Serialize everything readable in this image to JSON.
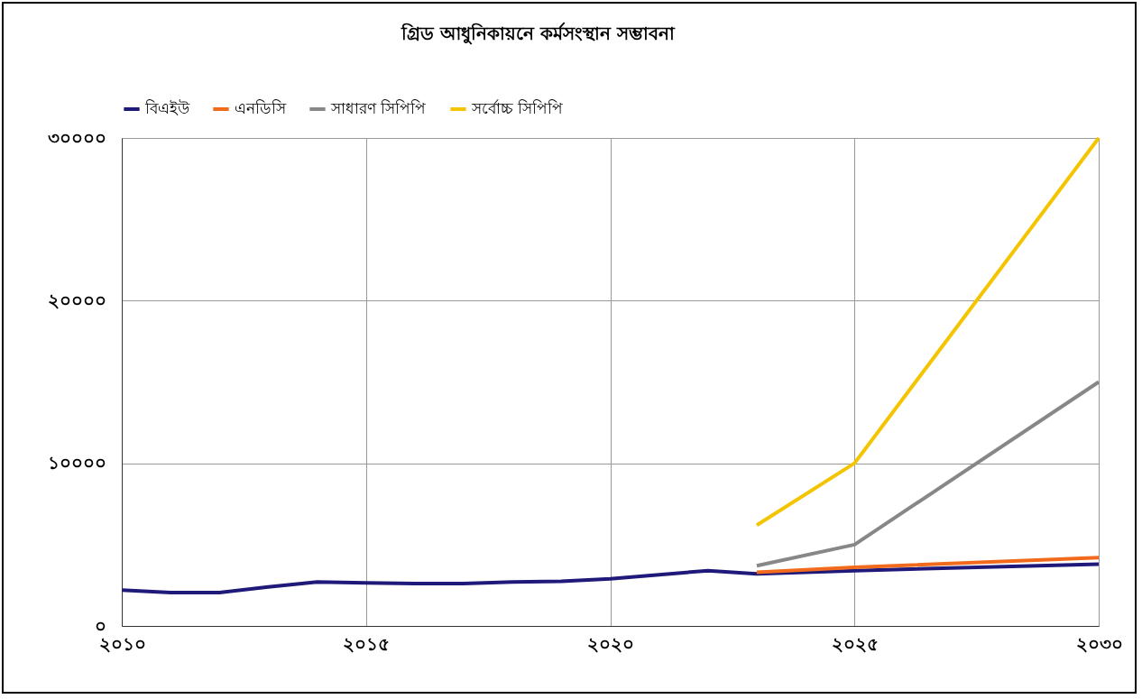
{
  "chart_data": {
    "type": "line",
    "title": "গ্রিড আধুনিকায়নে কর্মসংস্থান সম্ভাবনা",
    "xlim": [
      2010,
      2030
    ],
    "xticks": [
      {
        "value": 2010,
        "label": "২০১০"
      },
      {
        "value": 2015,
        "label": "২০১৫"
      },
      {
        "value": 2020,
        "label": "২০২০"
      },
      {
        "value": 2025,
        "label": "২০২৫"
      },
      {
        "value": 2030,
        "label": "২০৩০"
      }
    ],
    "ylim": [
      0,
      30000
    ],
    "yticks": [
      {
        "value": 0,
        "label": "০"
      },
      {
        "value": 10000,
        "label": "১০০০০"
      },
      {
        "value": 20000,
        "label": "২০০০০"
      },
      {
        "value": 30000,
        "label": "৩০০০০"
      }
    ],
    "grid": true,
    "legend": "top",
    "line_style": "solid",
    "series": [
      {
        "name": "বিএইউ",
        "color": "#1f1a7a",
        "x": [
          2010,
          2011,
          2012,
          2013,
          2014,
          2015,
          2016,
          2017,
          2018,
          2019,
          2020,
          2021,
          2022,
          2023,
          2025,
          2030
        ],
        "values": [
          2200,
          2050,
          2050,
          2400,
          2700,
          2650,
          2600,
          2600,
          2700,
          2750,
          2900,
          3150,
          3400,
          3200,
          3400,
          3800
        ]
      },
      {
        "name": "এনডিসি",
        "color": "#f26b1d",
        "x": [
          2023,
          2025,
          2030
        ],
        "values": [
          3300,
          3600,
          4200
        ]
      },
      {
        "name": "সাধারণ সিপিপি",
        "color": "#878787",
        "x": [
          2023,
          2025,
          2030
        ],
        "values": [
          3700,
          5000,
          15000
        ]
      },
      {
        "name": "সর্বোচ্চ সিপিপি",
        "color": "#f5c400",
        "x": [
          2023,
          2025,
          2030
        ],
        "values": [
          6200,
          10000,
          30000
        ]
      }
    ]
  }
}
